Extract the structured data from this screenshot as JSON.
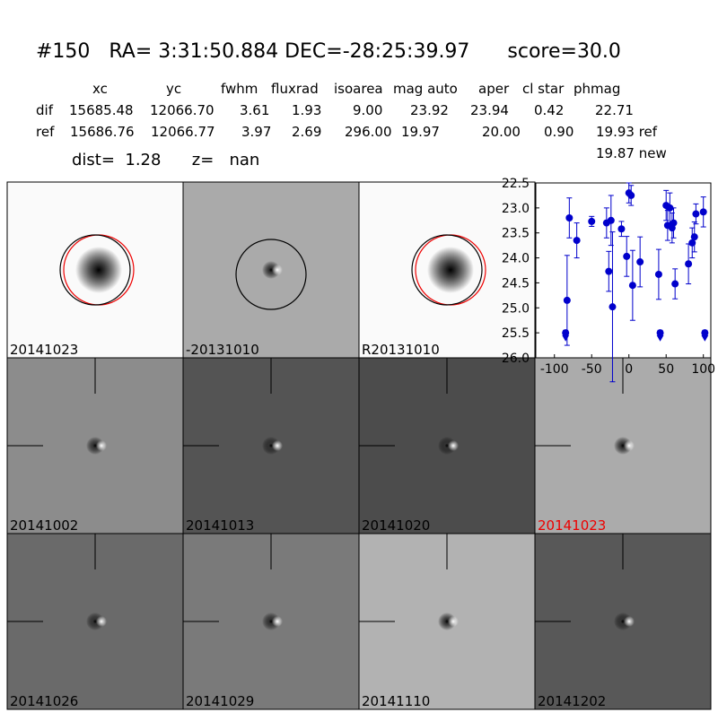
{
  "header": {
    "title": "#150   RA= 3:31:50.884 DEC=-28:25:39.97      score=30.0"
  },
  "table": {
    "columns": [
      "xc",
      "yc",
      "fwhm",
      "fluxrad",
      "isoarea",
      "mag auto",
      "aper",
      "cl star",
      "phmag"
    ],
    "rows": [
      [
        "dif",
        "15685.48",
        "12066.70",
        "3.61",
        "1.93",
        "9.00",
        "23.92",
        "23.94",
        "0.42",
        "22.71"
      ],
      [
        "ref",
        "15686.76",
        "12066.77",
        "3.97",
        "2.69",
        "296.00",
        "19.97",
        "20.00",
        "0.90",
        "19.93 ref"
      ]
    ],
    "dist": "dist=  1.28      z=   nan",
    "extra": "19.87 new"
  },
  "panels": [
    {
      "label": "20141023"
    },
    {
      "label": "-20131010"
    },
    {
      "label": "R20131010"
    },
    {
      "label": "20141002"
    },
    {
      "label": "20141013"
    },
    {
      "label": "20141020"
    },
    {
      "label": "20141023"
    },
    {
      "label": "20141026"
    },
    {
      "label": "20141029"
    },
    {
      "label": "20141110"
    },
    {
      "label": "20141202"
    }
  ],
  "chart_data": {
    "type": "errorbar",
    "color": "#0000cc",
    "xlim": [
      -125,
      110
    ],
    "xticks": [
      -100,
      -50,
      0,
      50,
      100
    ],
    "ylim": [
      26,
      22.5
    ],
    "yticks": [
      {
        "value": 22.5,
        "label": "22.5"
      },
      {
        "value": 23,
        "label": "23.0"
      },
      {
        "value": 23.5,
        "label": "23.5"
      },
      {
        "value": 24,
        "label": "24.0"
      },
      {
        "value": 24.5,
        "label": "24.5"
      },
      {
        "value": 25,
        "label": "25.0"
      },
      {
        "value": 25.5,
        "label": "25.5"
      },
      {
        "value": 26,
        "label": "26.0"
      }
    ],
    "x": [
      -85,
      -83,
      -80,
      -70,
      -50,
      -30,
      -27,
      -24,
      -22,
      -10,
      -3,
      0,
      3,
      5,
      15,
      40,
      42,
      50,
      52,
      55,
      58,
      60,
      62,
      80,
      85,
      88,
      90,
      100,
      102
    ],
    "values": [
      25.5,
      24.85,
      23.2,
      23.65,
      23.27,
      23.3,
      24.27,
      23.25,
      24.98,
      23.42,
      23.97,
      22.7,
      22.75,
      24.55,
      24.08,
      24.33,
      25.5,
      22.95,
      23.35,
      23.0,
      23.4,
      23.3,
      24.52,
      24.12,
      23.7,
      23.58,
      23.12,
      23.08,
      25.5
    ],
    "errors": [
      0.05,
      0.9,
      0.4,
      0.35,
      0.1,
      0.3,
      0.4,
      0.5,
      1.5,
      0.15,
      0.4,
      0.2,
      0.2,
      0.7,
      0.5,
      0.5,
      0.05,
      0.3,
      0.3,
      0.3,
      0.3,
      0.3,
      0.3,
      0.4,
      0.3,
      0.3,
      0.2,
      0.3,
      0.05
    ],
    "limits_x": [
      -85,
      42,
      102
    ],
    "limits": [
      25.6,
      25.6,
      25.6
    ]
  }
}
